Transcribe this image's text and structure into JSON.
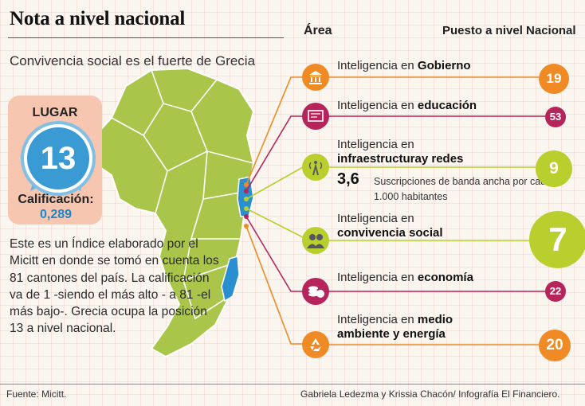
{
  "title": "Nota a nivel nacional",
  "subtitle": "Convivencia social es el fuerte de Grecia",
  "columns": {
    "area": "Área",
    "rank": "Puesto a nivel Nacional"
  },
  "badge": {
    "label": "LUGAR",
    "position": "13",
    "score_label": "Calificación:",
    "score_value": "0,289",
    "box_color": "#f6c6b0",
    "medal_color": "#3a9ad3"
  },
  "description": "Este es un Índice elaborado por el Micitt en donde se tomó en cuenta los 81 cantones del país. La calificación va de 1 -siendo el más alto - a 81 -el más bajo-. Grecia ocupa la posición 13 a nivel nacional.",
  "rows": [
    {
      "prefix": "Inteligencia en ",
      "area": "Gobierno",
      "icon": "government-building-icon",
      "rank": "19",
      "color": "#f08a24"
    },
    {
      "prefix": "Inteligencia en ",
      "area": "educación",
      "icon": "diploma-icon",
      "rank": "53",
      "color": "#b5245a"
    },
    {
      "prefix": "Inteligencia en",
      "area": "infraestructuray redes",
      "icon": "antenna-tower-icon",
      "rank": "9",
      "color": "#b9cf2e"
    },
    {
      "prefix": "Inteligencia en",
      "area": "convivencia social",
      "icon": "people-icon",
      "rank": "7",
      "color": "#b9cf2e"
    },
    {
      "prefix": "Inteligencia en ",
      "area": "economía",
      "icon": "coins-icon",
      "rank": "22",
      "color": "#b5245a"
    },
    {
      "prefix": "Inteligencia en ",
      "area": "medio ambiente y energía",
      "area_line1": "medio",
      "area_line2": "ambiente y energía",
      "icon": "recycle-icon",
      "rank": "20",
      "color": "#f08a24"
    }
  ],
  "broadband": {
    "value": "3,6",
    "text": "Suscripciones de banda ancha por cada 1.000 habitantes"
  },
  "map": {
    "land_color": "#a9c64a",
    "highlight_color": "#2a8fd0"
  },
  "footer": {
    "source": "Fuente: Micitt.",
    "credit": "Gabriela Ledezma  y Krissia Chacón/ Infografía El Financiero."
  }
}
